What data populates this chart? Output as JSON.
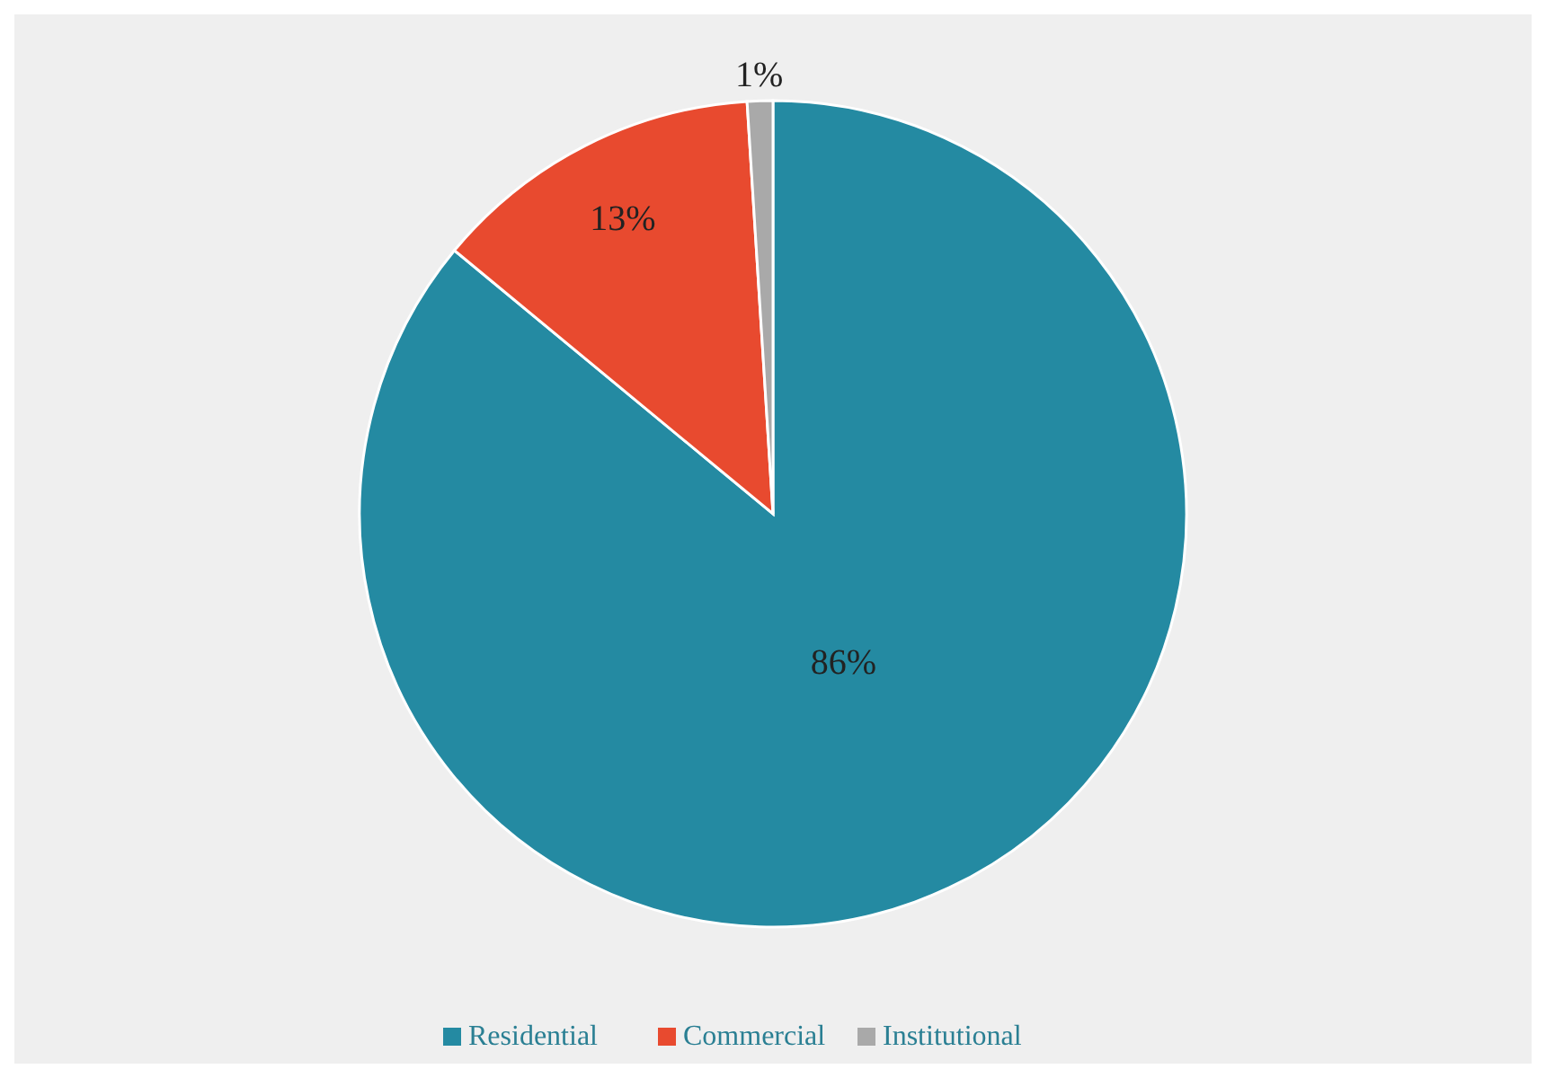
{
  "chart_data": {
    "type": "pie",
    "categories": [
      "Residential",
      "Commercial",
      "Institutional"
    ],
    "values": [
      86,
      13,
      1
    ],
    "colors": [
      "#248aa2",
      "#e84a2f",
      "#a9a9a9"
    ],
    "value_labels": [
      "86%",
      "13%",
      "1%"
    ],
    "legend": "bottom"
  }
}
